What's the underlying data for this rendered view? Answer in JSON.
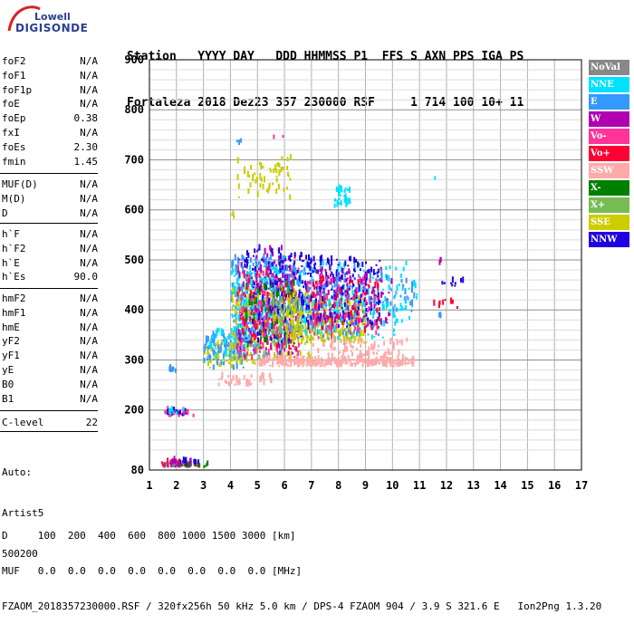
{
  "logo": {
    "line1": "Lowell",
    "line2": "DIGISONDE"
  },
  "header": {
    "line1": "Station   YYYY DAY   DDD HHMMSS P1  FFS S AXN PPS IGA PS",
    "line2": "Fortaleza 2018 Dez23 357 230000 RSF     1 714 100 10+ 11"
  },
  "params_group1": [
    {
      "name": "foF2",
      "value": "N/A"
    },
    {
      "name": "foF1",
      "value": "N/A"
    },
    {
      "name": "foF1p",
      "value": "N/A"
    },
    {
      "name": "foE",
      "value": "N/A"
    },
    {
      "name": "foEp",
      "value": "0.38"
    },
    {
      "name": "fxI",
      "value": "N/A"
    },
    {
      "name": "foEs",
      "value": "2.30"
    },
    {
      "name": "fmin",
      "value": "1.45"
    }
  ],
  "params_group2": [
    {
      "name": "MUF(D)",
      "value": "N/A"
    },
    {
      "name": "M(D)",
      "value": "N/A"
    },
    {
      "name": "D",
      "value": "N/A"
    }
  ],
  "params_group3": [
    {
      "name": "h`F",
      "value": "N/A"
    },
    {
      "name": "h`F2",
      "value": "N/A"
    },
    {
      "name": "h`E",
      "value": "N/A"
    },
    {
      "name": "h`Es",
      "value": "90.0"
    }
  ],
  "params_group4": [
    {
      "name": "hmF2",
      "value": "N/A"
    },
    {
      "name": "hmF1",
      "value": "N/A"
    },
    {
      "name": "hmE",
      "value": "N/A"
    },
    {
      "name": "yF2",
      "value": "N/A"
    },
    {
      "name": "yF1",
      "value": "N/A"
    },
    {
      "name": "yE",
      "value": "N/A"
    },
    {
      "name": "B0",
      "value": "N/A"
    },
    {
      "name": "B1",
      "value": "N/A"
    }
  ],
  "c_level": {
    "name": "C-level",
    "value": "22"
  },
  "auto": {
    "line1": "Auto:",
    "line2": "Artist5",
    "line3": "500200"
  },
  "bottom": {
    "line1": "D     100  200  400  600  800 1000 1500 3000 [km]",
    "line2": "MUF   0.0  0.0  0.0  0.0  0.0  0.0  0.0  0.0 [MHz]",
    "line3": "FZAOM_2018357230000.RSF / 320fx256h 50 kHz 5.0 km / DPS-4 FZAOM 904 / 3.9 S 321.6 E   Ion2Png 1.3.20"
  },
  "legend": [
    {
      "label": "NoVal",
      "color": "#888888"
    },
    {
      "label": "NNE",
      "color": "#00e0ff"
    },
    {
      "label": "E",
      "color": "#3399ff"
    },
    {
      "label": "W",
      "color": "#b000b0"
    },
    {
      "label": "Vo-",
      "color": "#ff3399"
    },
    {
      "label": "Vo+",
      "color": "#ff0033"
    },
    {
      "label": "SSW",
      "color": "#ffaaaa"
    },
    {
      "label": "X-",
      "color": "#008000"
    },
    {
      "label": "X+",
      "color": "#77bb55"
    },
    {
      "label": "SSE",
      "color": "#cccc00"
    },
    {
      "label": "NNW",
      "color": "#2000e0"
    }
  ],
  "chart_data": {
    "type": "scatter",
    "xlim": [
      1,
      17
    ],
    "ylim": [
      80,
      900
    ],
    "x_ticks": [
      1,
      2,
      3,
      4,
      5,
      6,
      7,
      8,
      9,
      10,
      11,
      12,
      13,
      14,
      15,
      16,
      17
    ],
    "y_ticks": [
      80,
      200,
      300,
      400,
      500,
      600,
      700,
      800,
      900
    ],
    "grid": true,
    "legend_position": "right",
    "regions": [
      {
        "series": "E",
        "x": [
          1.5,
          2.5
        ],
        "y": [
          85,
          90
        ],
        "n": 30
      },
      {
        "series": "Vo+",
        "x": [
          1.4,
          2.8
        ],
        "y": [
          84,
          92
        ],
        "n": 30
      },
      {
        "series": "X-",
        "x": [
          2.0,
          3.2
        ],
        "y": [
          84,
          90
        ],
        "n": 18
      },
      {
        "series": "NNW",
        "x": [
          2.1,
          2.8
        ],
        "y": [
          88,
          98
        ],
        "n": 12
      },
      {
        "series": "W",
        "x": [
          1.6,
          2.6
        ],
        "y": [
          86,
          96
        ],
        "n": 12
      },
      {
        "series": "Vo-",
        "x": [
          1.5,
          2.6
        ],
        "y": [
          185,
          198
        ],
        "n": 20
      },
      {
        "series": "NNW",
        "x": [
          1.6,
          2.4
        ],
        "y": [
          186,
          198
        ],
        "n": 12
      },
      {
        "series": "NNE",
        "x": [
          1.7,
          2.3
        ],
        "y": [
          188,
          198
        ],
        "n": 8
      },
      {
        "series": "E",
        "x": [
          1.7,
          1.95
        ],
        "y": [
          273,
          282
        ],
        "n": 8
      },
      {
        "series": "SSE",
        "x": [
          3.0,
          4.3
        ],
        "y": [
          280,
          330
        ],
        "n": 60
      },
      {
        "series": "E",
        "x": [
          3.0,
          4.5
        ],
        "y": [
          280,
          350
        ],
        "n": 80
      },
      {
        "series": "NNE",
        "x": [
          3.2,
          4.6
        ],
        "y": [
          300,
          360
        ],
        "n": 50
      },
      {
        "series": "E",
        "x": [
          4.0,
          6.2
        ],
        "y": [
          300,
          500
        ],
        "n": 420
      },
      {
        "series": "NNE",
        "x": [
          4.0,
          6.0
        ],
        "y": [
          320,
          480
        ],
        "n": 180
      },
      {
        "series": "SSE",
        "x": [
          4.0,
          7.0
        ],
        "y": [
          290,
          440
        ],
        "n": 260
      },
      {
        "series": "W",
        "x": [
          4.2,
          6.5
        ],
        "y": [
          300,
          520
        ],
        "n": 150
      },
      {
        "series": "Vo-",
        "x": [
          4.2,
          6.5
        ],
        "y": [
          300,
          480
        ],
        "n": 150
      },
      {
        "series": "Vo+",
        "x": [
          4.3,
          6.3
        ],
        "y": [
          310,
          470
        ],
        "n": 90
      },
      {
        "series": "NNW",
        "x": [
          4.5,
          6.8
        ],
        "y": [
          330,
          520
        ],
        "n": 130
      },
      {
        "series": "X-",
        "x": [
          4.5,
          6.5
        ],
        "y": [
          320,
          450
        ],
        "n": 60
      },
      {
        "series": "X+",
        "x": [
          5.5,
          8.5
        ],
        "y": [
          330,
          420
        ],
        "n": 140
      },
      {
        "series": "SSE",
        "x": [
          6.0,
          9.0
        ],
        "y": [
          330,
          420
        ],
        "n": 260
      },
      {
        "series": "E",
        "x": [
          6.0,
          9.5
        ],
        "y": [
          340,
          480
        ],
        "n": 200
      },
      {
        "series": "NNE",
        "x": [
          6.5,
          10.5
        ],
        "y": [
          340,
          490
        ],
        "n": 150
      },
      {
        "series": "NNW",
        "x": [
          6.5,
          9.5
        ],
        "y": [
          360,
          500
        ],
        "n": 200
      },
      {
        "series": "W",
        "x": [
          7.0,
          10.0
        ],
        "y": [
          360,
          480
        ],
        "n": 100
      },
      {
        "series": "Vo-",
        "x": [
          6.8,
          9.5
        ],
        "y": [
          340,
          460
        ],
        "n": 100
      },
      {
        "series": "Vo+",
        "x": [
          7.0,
          9.5
        ],
        "y": [
          350,
          460
        ],
        "n": 50
      },
      {
        "series": "SSW",
        "x": [
          5.0,
          10.8
        ],
        "y": [
          285,
          300
        ],
        "n": 260
      },
      {
        "series": "SSW",
        "x": [
          3.5,
          5.5
        ],
        "y": [
          245,
          265
        ],
        "n": 40
      },
      {
        "series": "SSW",
        "x": [
          7.0,
          10.5
        ],
        "y": [
          300,
          340
        ],
        "n": 70
      },
      {
        "series": "SSE",
        "x": [
          4.2,
          6.2
        ],
        "y": [
          620,
          700
        ],
        "n": 60
      },
      {
        "series": "SSE",
        "x": [
          3.8,
          4.2
        ],
        "y": [
          580,
          595
        ],
        "n": 4
      },
      {
        "series": "NNE",
        "x": [
          7.8,
          8.4
        ],
        "y": [
          600,
          640
        ],
        "n": 35
      },
      {
        "series": "E",
        "x": [
          4.2,
          4.4
        ],
        "y": [
          725,
          740
        ],
        "n": 3
      },
      {
        "series": "Vo-",
        "x": [
          5.5,
          6.0
        ],
        "y": [
          730,
          745
        ],
        "n": 2
      },
      {
        "series": "E",
        "x": [
          9.5,
          10.8
        ],
        "y": [
          390,
          470
        ],
        "n": 30
      },
      {
        "series": "NNE",
        "x": [
          9.8,
          10.9
        ],
        "y": [
          380,
          460
        ],
        "n": 25
      },
      {
        "series": "Vo+",
        "x": [
          11.5,
          12.4
        ],
        "y": [
          400,
          420
        ],
        "n": 8
      },
      {
        "series": "NNW",
        "x": [
          11.8,
          12.6
        ],
        "y": [
          445,
          455
        ],
        "n": 10
      },
      {
        "series": "E",
        "x": [
          11.6,
          11.8
        ],
        "y": [
          370,
          390
        ],
        "n": 3
      },
      {
        "series": "W",
        "x": [
          11.7,
          11.8
        ],
        "y": [
          480,
          500
        ],
        "n": 3
      },
      {
        "series": "NNE",
        "x": [
          11.5,
          11.6
        ],
        "y": [
          655,
          665
        ],
        "n": 2
      }
    ]
  }
}
